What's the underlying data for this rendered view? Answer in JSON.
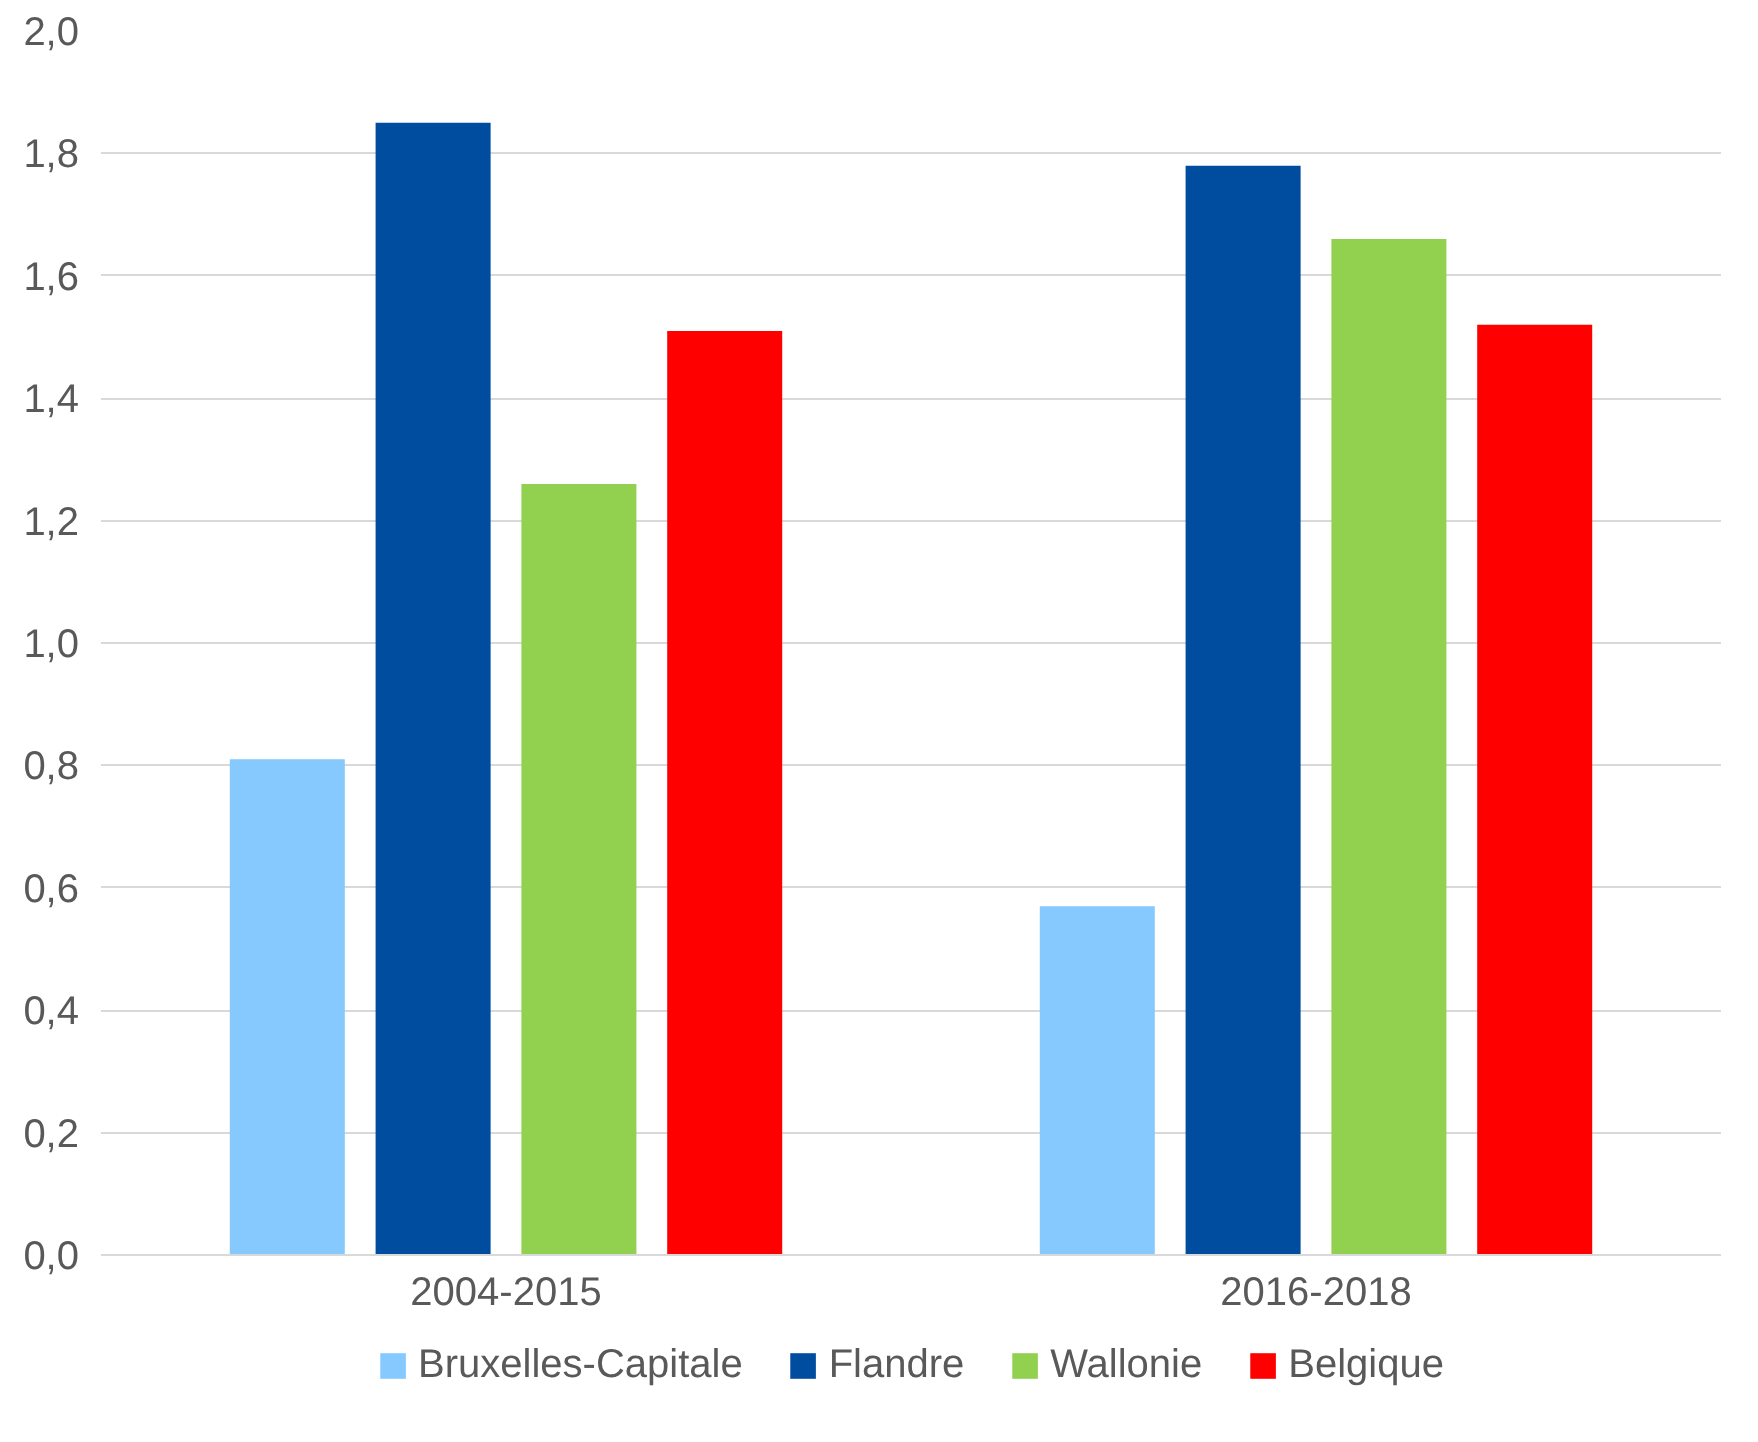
{
  "chart_data": {
    "type": "bar",
    "categories": [
      "2004-2015",
      "2016-2018"
    ],
    "series": [
      {
        "name": "Bruxelles-Capitale",
        "color": "#85c9ff",
        "values": [
          0.81,
          0.57
        ]
      },
      {
        "name": "Flandre",
        "color": "#004c9e",
        "values": [
          1.85,
          1.78
        ]
      },
      {
        "name": "Wallonie",
        "color": "#92d050",
        "values": [
          1.26,
          1.66
        ]
      },
      {
        "name": "Belgique",
        "color": "#ff0000",
        "values": [
          1.51,
          1.52
        ]
      }
    ],
    "ylim": [
      0,
      2
    ],
    "yticks": [
      {
        "value": 0,
        "label": "0,0"
      },
      {
        "value": 0.2,
        "label": "0,2"
      },
      {
        "value": 0.4,
        "label": "0,4"
      },
      {
        "value": 0.6,
        "label": "0,6"
      },
      {
        "value": 0.8,
        "label": "0,8"
      },
      {
        "value": 1,
        "label": "1,0"
      },
      {
        "value": 1.2,
        "label": "1,2"
      },
      {
        "value": 1.4,
        "label": "1,4"
      },
      {
        "value": 1.6,
        "label": "1,6"
      },
      {
        "value": 1.8,
        "label": "1,8"
      },
      {
        "value": 2,
        "label": "2,0"
      }
    ],
    "grid": "y",
    "legend": "bottom"
  }
}
